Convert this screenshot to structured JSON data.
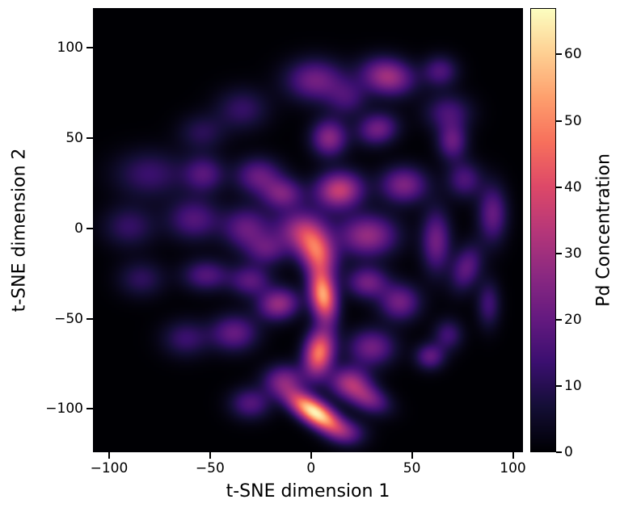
{
  "chart_data": {
    "type": "heatmap",
    "subtype": "kde-density",
    "title": "",
    "xlabel": "t-SNE dimension 1",
    "ylabel": "t-SNE dimension 2",
    "colorbar_label": "Pd Concentration",
    "xlim": [
      -108,
      105
    ],
    "ylim": [
      -124,
      122
    ],
    "grid": false,
    "x_ticks": [
      -100,
      -50,
      0,
      50,
      100
    ],
    "x_tick_labels": [
      "−100",
      "−50",
      "0",
      "50",
      "100"
    ],
    "y_ticks": [
      -100,
      -50,
      0,
      50,
      100
    ],
    "y_tick_labels": [
      "−100",
      "−50",
      "0",
      "50",
      "100"
    ],
    "colorbar": {
      "vmin": 0,
      "vmax": 67,
      "ticks": [
        0,
        10,
        20,
        30,
        40,
        50,
        60
      ],
      "tick_labels": [
        "0",
        "10",
        "20",
        "30",
        "40",
        "50",
        "60"
      ],
      "position": "right"
    },
    "colormap": {
      "name": "magma",
      "background": "#000004",
      "stops": [
        [
          0.0,
          [
            0,
            0,
            4
          ]
        ],
        [
          0.1,
          [
            20,
            14,
            54
          ]
        ],
        [
          0.2,
          [
            59,
            15,
            112
          ]
        ],
        [
          0.3,
          [
            101,
            26,
            128
          ]
        ],
        [
          0.4,
          [
            140,
            41,
            129
          ]
        ],
        [
          0.5,
          [
            183,
            55,
            121
          ]
        ],
        [
          0.6,
          [
            222,
            73,
            104
          ]
        ],
        [
          0.7,
          [
            247,
            112,
            92
          ]
        ],
        [
          0.8,
          [
            254,
            159,
            109
          ]
        ],
        [
          0.9,
          [
            254,
            207,
            146
          ]
        ],
        [
          1.0,
          [
            252,
            253,
            191
          ]
        ]
      ]
    },
    "blobs_format": [
      "x",
      "y",
      "sigma_x",
      "sigma_y",
      "angle_deg",
      "amplitude"
    ],
    "blobs": [
      [
        2,
        82,
        10,
        8,
        0,
        22
      ],
      [
        38,
        84,
        9,
        7,
        -15,
        30
      ],
      [
        18,
        72,
        7,
        7,
        0,
        13
      ],
      [
        64,
        87,
        6,
        6,
        0,
        16
      ],
      [
        68,
        64,
        8,
        7,
        0,
        15
      ],
      [
        -34,
        66,
        9,
        8,
        0,
        12
      ],
      [
        -54,
        53,
        8,
        7,
        0,
        10
      ],
      [
        9,
        50,
        6,
        7,
        0,
        26
      ],
      [
        33,
        55,
        7,
        6,
        20,
        22
      ],
      [
        70,
        48,
        5,
        7,
        0,
        20
      ],
      [
        -80,
        30,
        12,
        9,
        0,
        13
      ],
      [
        -53,
        30,
        7,
        7,
        0,
        17
      ],
      [
        -26,
        29,
        8,
        7,
        0,
        20
      ],
      [
        -14,
        19,
        7,
        6,
        0,
        22
      ],
      [
        14,
        21,
        8,
        7,
        10,
        36
      ],
      [
        46,
        24,
        8,
        7,
        0,
        24
      ],
      [
        76,
        27,
        6,
        7,
        0,
        16
      ],
      [
        90,
        8,
        5,
        11,
        0,
        20
      ],
      [
        -90,
        1,
        9,
        8,
        0,
        12
      ],
      [
        -58,
        5,
        9,
        8,
        0,
        17
      ],
      [
        -32,
        0,
        8,
        8,
        0,
        20
      ],
      [
        -5,
        -1,
        9,
        8,
        0,
        26
      ],
      [
        3,
        -13,
        6,
        9,
        20,
        40
      ],
      [
        28,
        -4,
        10,
        8,
        0,
        28
      ],
      [
        62,
        -7,
        5,
        12,
        0,
        22
      ],
      [
        77,
        -22,
        5,
        9,
        -15,
        19
      ],
      [
        -84,
        -28,
        8,
        7,
        0,
        11
      ],
      [
        -52,
        -26,
        8,
        6,
        0,
        17
      ],
      [
        -30,
        -29,
        7,
        6,
        0,
        18
      ],
      [
        -22,
        -12,
        7,
        6,
        0,
        16
      ],
      [
        -16,
        -42,
        7,
        6,
        15,
        28
      ],
      [
        6,
        -37,
        4.5,
        10,
        8,
        54
      ],
      [
        28,
        -30,
        7,
        6,
        0,
        22
      ],
      [
        44,
        -41,
        7,
        7,
        0,
        22
      ],
      [
        68,
        -59,
        5,
        6,
        0,
        14
      ],
      [
        88,
        -42,
        4,
        9,
        0,
        14
      ],
      [
        -62,
        -61,
        8,
        7,
        0,
        13
      ],
      [
        -38,
        -58,
        8,
        7,
        0,
        20
      ],
      [
        4,
        -69,
        5,
        9,
        -8,
        48
      ],
      [
        30,
        -66,
        8,
        7,
        0,
        22
      ],
      [
        59,
        -71,
        5,
        5,
        0,
        19
      ],
      [
        -13,
        -84,
        7,
        6,
        0,
        22
      ],
      [
        19,
        -85,
        7,
        6,
        0,
        26
      ],
      [
        2,
        -102,
        11,
        4.5,
        -38,
        66
      ],
      [
        28,
        -94,
        8,
        5,
        -30,
        24
      ],
      [
        -30,
        -97,
        7,
        6,
        0,
        17
      ],
      [
        18,
        -113,
        7,
        5,
        0,
        13
      ]
    ]
  }
}
